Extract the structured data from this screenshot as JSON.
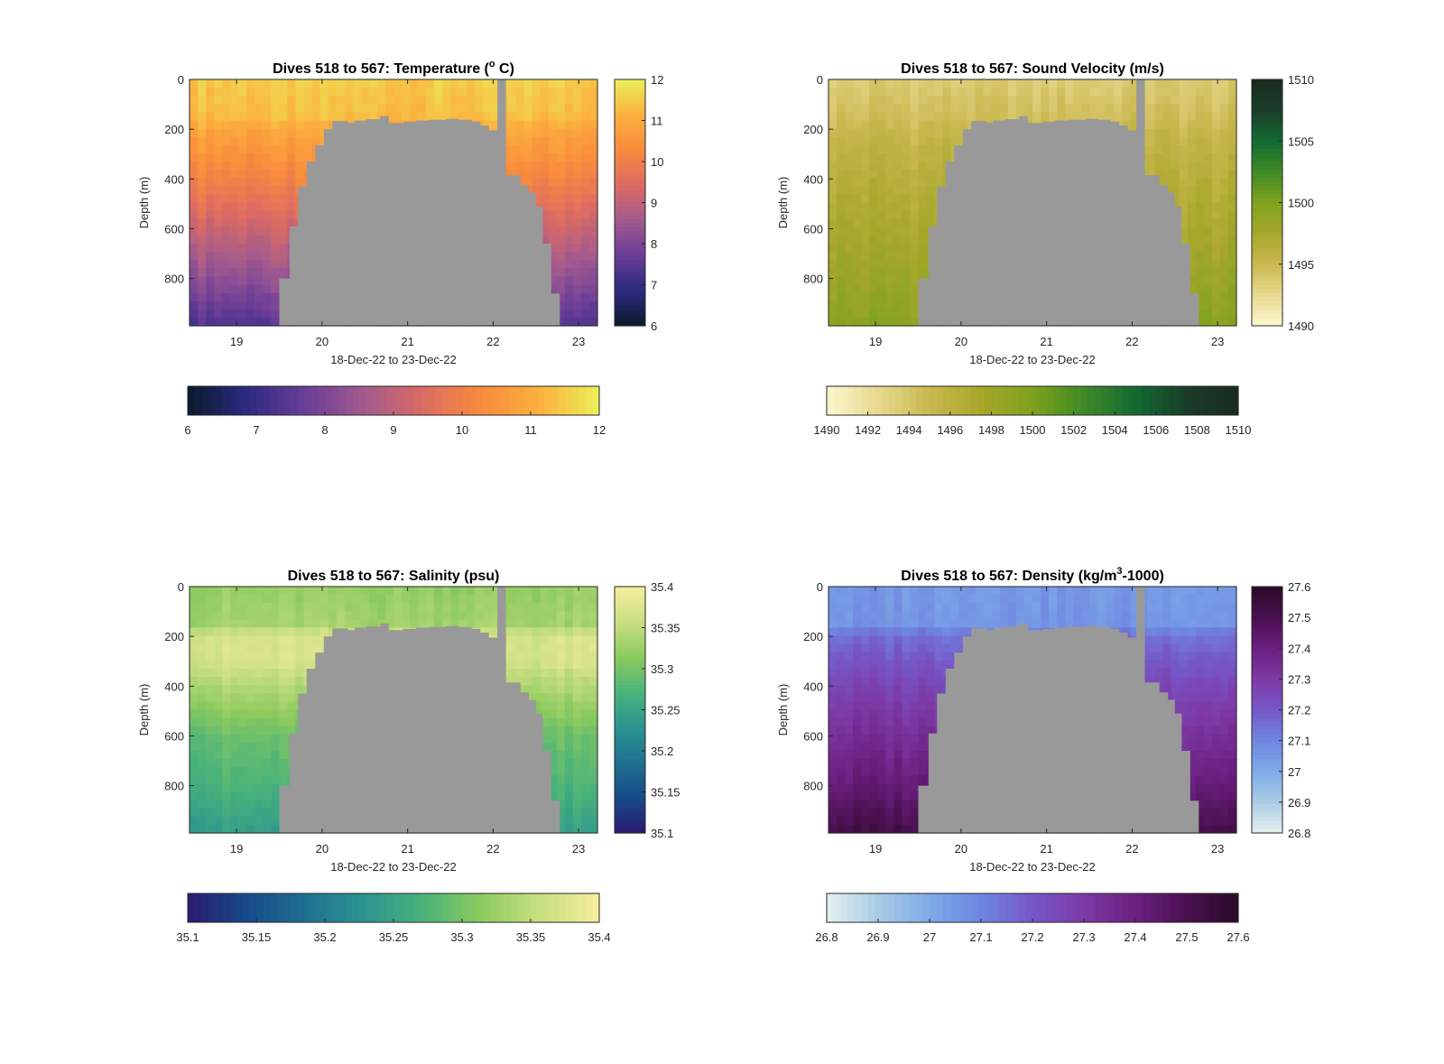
{
  "chart_data": [
    {
      "type": "heatmap",
      "title_text": "Dives 518 to 567: Temperature (",
      "title_sup": "o",
      "title_tail": " C)",
      "xlabel": "18-Dec-22 to 23-Dec-22",
      "ylabel": "Depth (m)",
      "x_range": [
        18.45,
        23.22
      ],
      "y_range": [
        0,
        990
      ],
      "x_ticks": [
        "19",
        "20",
        "21",
        "22",
        "23"
      ],
      "y_ticks": [
        "0",
        "200",
        "400",
        "600",
        "800"
      ],
      "clim": [
        6,
        12
      ],
      "cbar_right_ticks": [
        "6",
        "7",
        "8",
        "9",
        "10",
        "11",
        "12"
      ],
      "cbar_bottom_ticks": [
        "6",
        "7",
        "8",
        "9",
        "10",
        "11",
        "12"
      ],
      "colormap": [
        "#0b1a2c",
        "#2b2a80",
        "#6a3d98",
        "#a25a8e",
        "#dc6b63",
        "#f98b3d",
        "#fbb13f",
        "#eaf05a"
      ],
      "profile": {
        "depth": [
          0,
          150,
          200,
          400,
          600,
          800,
          990
        ],
        "value": [
          11.5,
          11.3,
          10.9,
          10.1,
          9.2,
          8.3,
          7.4
        ]
      },
      "no_data_color": "#999999"
    },
    {
      "type": "heatmap",
      "title_text": "Dives 518 to 567: Sound Velocity (m/s)",
      "title_sup": "",
      "title_tail": "",
      "xlabel": "18-Dec-22 to 23-Dec-22",
      "ylabel": "Depth (m)",
      "x_range": [
        18.45,
        23.22
      ],
      "y_range": [
        0,
        990
      ],
      "x_ticks": [
        "19",
        "20",
        "21",
        "22",
        "23"
      ],
      "y_ticks": [
        "0",
        "200",
        "400",
        "600",
        "800"
      ],
      "clim": [
        1490,
        1510
      ],
      "cbar_right_ticks": [
        "1490",
        "1495",
        "1500",
        "1505",
        "1510"
      ],
      "cbar_bottom_ticks": [
        "1490",
        "1492",
        "1494",
        "1496",
        "1498",
        "1500",
        "1502",
        "1504",
        "1506",
        "1508",
        "1510"
      ],
      "colormap": [
        "#fcf7cf",
        "#e8d98f",
        "#c9b84f",
        "#a7a72a",
        "#7ea21c",
        "#3f8a26",
        "#126a32",
        "#1a3d2a",
        "#182a1e"
      ],
      "profile": {
        "depth": [
          0,
          150,
          250,
          400,
          600,
          800,
          990
        ],
        "value": [
          1493.5,
          1494.5,
          1495.5,
          1496.3,
          1497.2,
          1498.2,
          1499.2
        ]
      },
      "no_data_color": "#999999"
    },
    {
      "type": "heatmap",
      "title_text": "Dives 518 to 567: Salinity (psu)",
      "title_sup": "",
      "title_tail": "",
      "xlabel": "18-Dec-22 to 23-Dec-22",
      "ylabel": "Depth (m)",
      "x_range": [
        18.45,
        23.22
      ],
      "y_range": [
        0,
        990
      ],
      "x_ticks": [
        "19",
        "20",
        "21",
        "22",
        "23"
      ],
      "y_ticks": [
        "0",
        "200",
        "400",
        "600",
        "800"
      ],
      "clim": [
        35.1,
        35.4
      ],
      "cbar_right_ticks": [
        "35.1",
        "35.15",
        "35.2",
        "35.25",
        "35.3",
        "35.35",
        "35.4"
      ],
      "cbar_bottom_ticks": [
        "35.1",
        "35.15",
        "35.2",
        "35.25",
        "35.3",
        "35.35",
        "35.4"
      ],
      "colormap": [
        "#2a1a70",
        "#174a8a",
        "#1f7090",
        "#2a9490",
        "#4bb37a",
        "#8dcb5e",
        "#c8df80",
        "#f7ee9e"
      ],
      "profile": {
        "depth": [
          0,
          150,
          200,
          300,
          400,
          600,
          800,
          990
        ],
        "value": [
          35.32,
          35.33,
          35.37,
          35.37,
          35.34,
          35.29,
          35.27,
          35.24
        ]
      },
      "no_data_color": "#999999"
    },
    {
      "type": "heatmap",
      "title_text": "Dives 518 to 567: Density (kg/m",
      "title_sup": "3",
      "title_tail": "-1000)",
      "xlabel": "18-Dec-22 to 23-Dec-22",
      "ylabel": "Depth (m)",
      "x_range": [
        18.45,
        23.22
      ],
      "y_range": [
        0,
        990
      ],
      "x_ticks": [
        "19",
        "20",
        "21",
        "22",
        "23"
      ],
      "y_ticks": [
        "0",
        "200",
        "400",
        "600",
        "800"
      ],
      "clim": [
        26.8,
        27.6
      ],
      "cbar_right_ticks": [
        "26.8",
        "26.9",
        "27",
        "27.1",
        "27.2",
        "27.3",
        "27.4",
        "27.5",
        "27.6"
      ],
      "cbar_bottom_ticks": [
        "26.8",
        "26.9",
        "27",
        "27.1",
        "27.2",
        "27.3",
        "27.4",
        "27.5",
        "27.6"
      ],
      "colormap": [
        "#e5f0f0",
        "#a9cce4",
        "#7eaae8",
        "#6f86e0",
        "#7657c8",
        "#7d3aa5",
        "#6a2080",
        "#4a1050",
        "#2a0a28"
      ],
      "profile": {
        "depth": [
          0,
          150,
          200,
          400,
          600,
          800,
          990
        ],
        "value": [
          27.05,
          27.06,
          27.15,
          27.26,
          27.34,
          27.42,
          27.52
        ]
      },
      "no_data_color": "#999999"
    }
  ]
}
